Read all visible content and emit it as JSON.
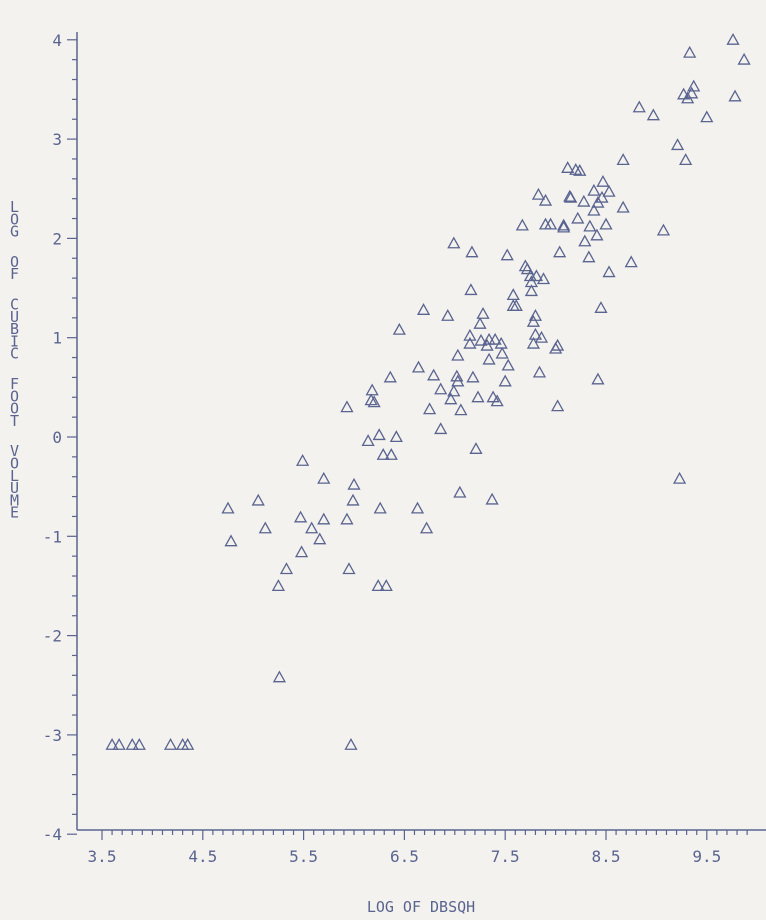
{
  "chart_data": {
    "type": "scatter",
    "xlabel": "LOG OF DBSQH",
    "ylabel": "LOG OF CUBIC FOOT VOLUME",
    "xlim": [
      3.5,
      9.9
    ],
    "ylim": [
      -4,
      4.1
    ],
    "x_ticks": [
      "3.5",
      "4.5",
      "5.5",
      "6.5",
      "7.5",
      "8.5",
      "9.5"
    ],
    "y_ticks": [
      "-4",
      "-3",
      "-2",
      "-1",
      "0",
      "1",
      "2",
      "3",
      "4"
    ],
    "grid": false,
    "marker": "triangle",
    "colors": {
      "ink": "#5a6490",
      "background": "#f4f2ee"
    },
    "series": [
      {
        "points": [
          [
            3.6,
            -3.1
          ],
          [
            3.67,
            -3.1
          ],
          [
            3.8,
            -3.1
          ],
          [
            3.87,
            -3.1
          ],
          [
            4.18,
            -3.1
          ],
          [
            4.3,
            -3.1
          ],
          [
            4.35,
            -3.1
          ],
          [
            4.75,
            -0.72
          ],
          [
            4.78,
            -1.05
          ],
          [
            5.05,
            -0.64
          ],
          [
            5.12,
            -0.92
          ],
          [
            5.25,
            -1.5
          ],
          [
            5.26,
            -2.42
          ],
          [
            5.33,
            -1.33
          ],
          [
            5.47,
            -0.81
          ],
          [
            5.48,
            -1.16
          ],
          [
            5.49,
            -0.24
          ],
          [
            5.58,
            -0.92
          ],
          [
            5.66,
            -1.03
          ],
          [
            5.7,
            -0.83
          ],
          [
            5.7,
            -0.42
          ],
          [
            5.93,
            -0.83
          ],
          [
            5.93,
            0.3
          ],
          [
            5.95,
            -1.33
          ],
          [
            5.97,
            -3.1
          ],
          [
            5.99,
            -0.64
          ],
          [
            6.0,
            -0.48
          ],
          [
            6.14,
            -0.04
          ],
          [
            6.17,
            0.37
          ],
          [
            6.18,
            0.47
          ],
          [
            6.2,
            0.35
          ],
          [
            6.24,
            -1.5
          ],
          [
            6.25,
            0.02
          ],
          [
            6.26,
            -0.72
          ],
          [
            6.29,
            -0.18
          ],
          [
            6.32,
            -1.5
          ],
          [
            6.36,
            0.6
          ],
          [
            6.37,
            -0.18
          ],
          [
            6.42,
            0.0
          ],
          [
            6.45,
            1.08
          ],
          [
            6.63,
            -0.72
          ],
          [
            6.64,
            0.7
          ],
          [
            6.69,
            1.28
          ],
          [
            6.72,
            -0.92
          ],
          [
            6.75,
            0.28
          ],
          [
            6.79,
            0.62
          ],
          [
            6.86,
            0.08
          ],
          [
            6.86,
            0.48
          ],
          [
            6.93,
            1.22
          ],
          [
            6.96,
            0.38
          ],
          [
            6.99,
            0.46
          ],
          [
            6.99,
            1.95
          ],
          [
            7.02,
            0.61
          ],
          [
            7.03,
            0.82
          ],
          [
            7.03,
            0.56
          ],
          [
            7.05,
            -0.56
          ],
          [
            7.06,
            0.27
          ],
          [
            7.15,
            0.94
          ],
          [
            7.15,
            1.02
          ],
          [
            7.16,
            1.48
          ],
          [
            7.17,
            1.86
          ],
          [
            7.18,
            0.6
          ],
          [
            7.21,
            -0.12
          ],
          [
            7.23,
            0.4
          ],
          [
            7.25,
            1.14
          ],
          [
            7.26,
            0.97
          ],
          [
            7.28,
            1.24
          ],
          [
            7.32,
            0.92
          ],
          [
            7.34,
            0.98
          ],
          [
            7.34,
            0.78
          ],
          [
            7.37,
            -0.63
          ],
          [
            7.38,
            0.4
          ],
          [
            7.4,
            0.98
          ],
          [
            7.42,
            0.36
          ],
          [
            7.46,
            0.94
          ],
          [
            7.47,
            0.84
          ],
          [
            7.5,
            0.56
          ],
          [
            7.52,
            1.83
          ],
          [
            7.53,
            0.72
          ],
          [
            7.58,
            1.43
          ],
          [
            7.58,
            1.32
          ],
          [
            7.61,
            1.32
          ],
          [
            7.67,
            2.13
          ],
          [
            7.7,
            1.72
          ],
          [
            7.72,
            1.69
          ],
          [
            7.75,
            1.62
          ],
          [
            7.76,
            1.56
          ],
          [
            7.76,
            1.47
          ],
          [
            7.78,
            0.94
          ],
          [
            7.78,
            1.16
          ],
          [
            7.8,
            1.22
          ],
          [
            7.8,
            1.03
          ],
          [
            7.81,
            1.62
          ],
          [
            7.83,
            2.44
          ],
          [
            7.84,
            0.65
          ],
          [
            7.86,
            1.0
          ],
          [
            7.88,
            1.59
          ],
          [
            7.9,
            2.14
          ],
          [
            7.9,
            2.38
          ],
          [
            7.95,
            2.14
          ],
          [
            8.0,
            0.89
          ],
          [
            8.02,
            0.31
          ],
          [
            8.02,
            0.92
          ],
          [
            8.04,
            1.86
          ],
          [
            8.08,
            2.13
          ],
          [
            8.08,
            2.11
          ],
          [
            8.12,
            2.71
          ],
          [
            8.14,
            2.42
          ],
          [
            8.15,
            2.41
          ],
          [
            8.2,
            2.69
          ],
          [
            8.22,
            2.2
          ],
          [
            8.24,
            2.68
          ],
          [
            8.28,
            2.37
          ],
          [
            8.29,
            1.97
          ],
          [
            8.33,
            1.81
          ],
          [
            8.34,
            2.12
          ],
          [
            8.38,
            2.48
          ],
          [
            8.38,
            2.28
          ],
          [
            8.41,
            2.03
          ],
          [
            8.42,
            2.36
          ],
          [
            8.42,
            0.58
          ],
          [
            8.45,
            1.3
          ],
          [
            8.46,
            2.41
          ],
          [
            8.47,
            2.57
          ],
          [
            8.5,
            2.14
          ],
          [
            8.53,
            1.66
          ],
          [
            8.53,
            2.47
          ],
          [
            8.67,
            2.31
          ],
          [
            8.67,
            2.79
          ],
          [
            8.75,
            1.76
          ],
          [
            8.83,
            3.32
          ],
          [
            8.97,
            3.24
          ],
          [
            9.07,
            2.08
          ],
          [
            9.21,
            2.94
          ],
          [
            9.23,
            -0.42
          ],
          [
            9.27,
            3.45
          ],
          [
            9.29,
            2.79
          ],
          [
            9.31,
            3.41
          ],
          [
            9.33,
            3.87
          ],
          [
            9.35,
            3.46
          ],
          [
            9.37,
            3.53
          ],
          [
            9.5,
            3.22
          ],
          [
            9.76,
            4.0
          ],
          [
            9.78,
            3.43
          ],
          [
            9.87,
            3.8
          ]
        ]
      }
    ]
  }
}
